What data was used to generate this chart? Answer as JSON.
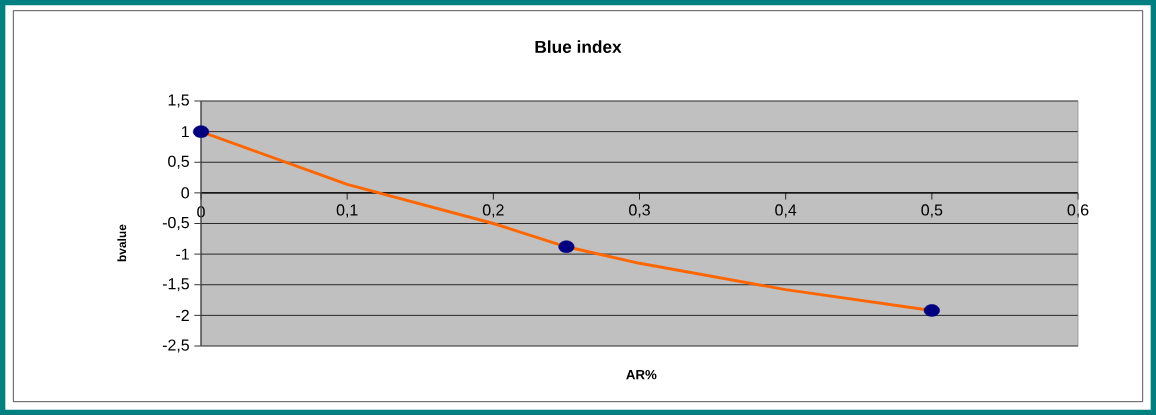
{
  "chart_data": {
    "type": "scatter",
    "title": "Blue index",
    "xlabel": "AR%",
    "ylabel": "bvalue",
    "xlim": [
      0,
      0.6
    ],
    "xticks": [
      {
        "value": 0,
        "label": "0"
      },
      {
        "value": 0.1,
        "label": "0,1"
      },
      {
        "value": 0.2,
        "label": "0,2"
      },
      {
        "value": 0.3,
        "label": "0,3"
      },
      {
        "value": 0.4,
        "label": "0,4"
      },
      {
        "value": 0.5,
        "label": "0,5"
      },
      {
        "value": 0.6,
        "label": "0,6"
      }
    ],
    "ylim": [
      -2.5,
      1.5
    ],
    "yticks": [
      {
        "value": -2.5,
        "label": "-2,5"
      },
      {
        "value": -2,
        "label": "-2"
      },
      {
        "value": -1.5,
        "label": "-1,5"
      },
      {
        "value": -1,
        "label": "-1"
      },
      {
        "value": -0.5,
        "label": "-0,5"
      },
      {
        "value": 0,
        "label": "0"
      },
      {
        "value": 0.5,
        "label": "0,5"
      },
      {
        "value": 1,
        "label": "1"
      },
      {
        "value": 1.5,
        "label": "1,5"
      }
    ],
    "grid": "y",
    "series": [
      {
        "color": "#000080",
        "marker": "circle",
        "x": [
          0,
          0.25,
          0.5
        ],
        "values": [
          1,
          -0.88,
          -1.92
        ]
      },
      {
        "type": "line",
        "color": "#ff6600",
        "marker": "none",
        "x": [
          0,
          0.1,
          0.2,
          0.25,
          0.3,
          0.4,
          0.5
        ],
        "values": [
          1,
          0.14,
          -0.5,
          -0.88,
          -1.15,
          -1.58,
          -1.92
        ]
      }
    ]
  }
}
